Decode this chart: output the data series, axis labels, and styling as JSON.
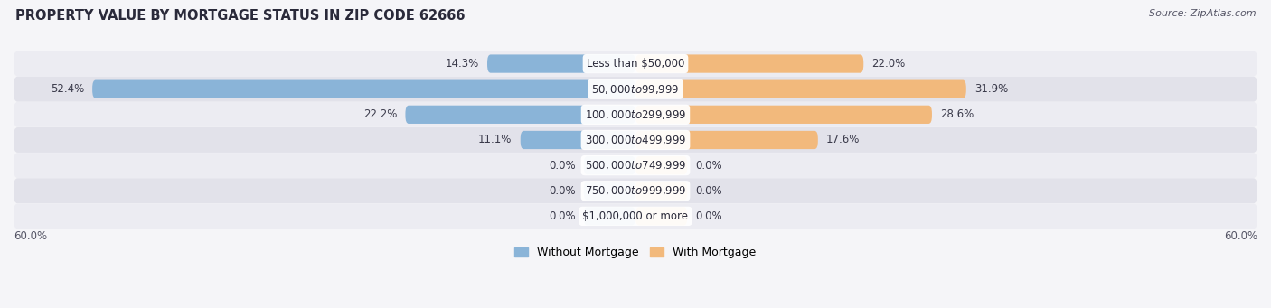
{
  "title": "PROPERTY VALUE BY MORTGAGE STATUS IN ZIP CODE 62666",
  "source": "Source: ZipAtlas.com",
  "categories": [
    "Less than $50,000",
    "$50,000 to $99,999",
    "$100,000 to $299,999",
    "$300,000 to $499,999",
    "$500,000 to $749,999",
    "$750,000 to $999,999",
    "$1,000,000 or more"
  ],
  "without_mortgage": [
    14.3,
    52.4,
    22.2,
    11.1,
    0.0,
    0.0,
    0.0
  ],
  "with_mortgage": [
    22.0,
    31.9,
    28.6,
    17.6,
    0.0,
    0.0,
    0.0
  ],
  "without_color": "#8ab4d8",
  "with_color": "#f2b97c",
  "row_bg_colors": [
    "#ececf2",
    "#e2e2ea"
  ],
  "xlim": 60.0,
  "zero_bar_width": 5.0,
  "legend_labels": [
    "Without Mortgage",
    "With Mortgage"
  ],
  "title_fontsize": 10.5,
  "source_fontsize": 8,
  "label_fontsize": 8.5,
  "cat_fontsize": 8.5,
  "bar_height": 0.72,
  "background_color": "#f5f5f8"
}
